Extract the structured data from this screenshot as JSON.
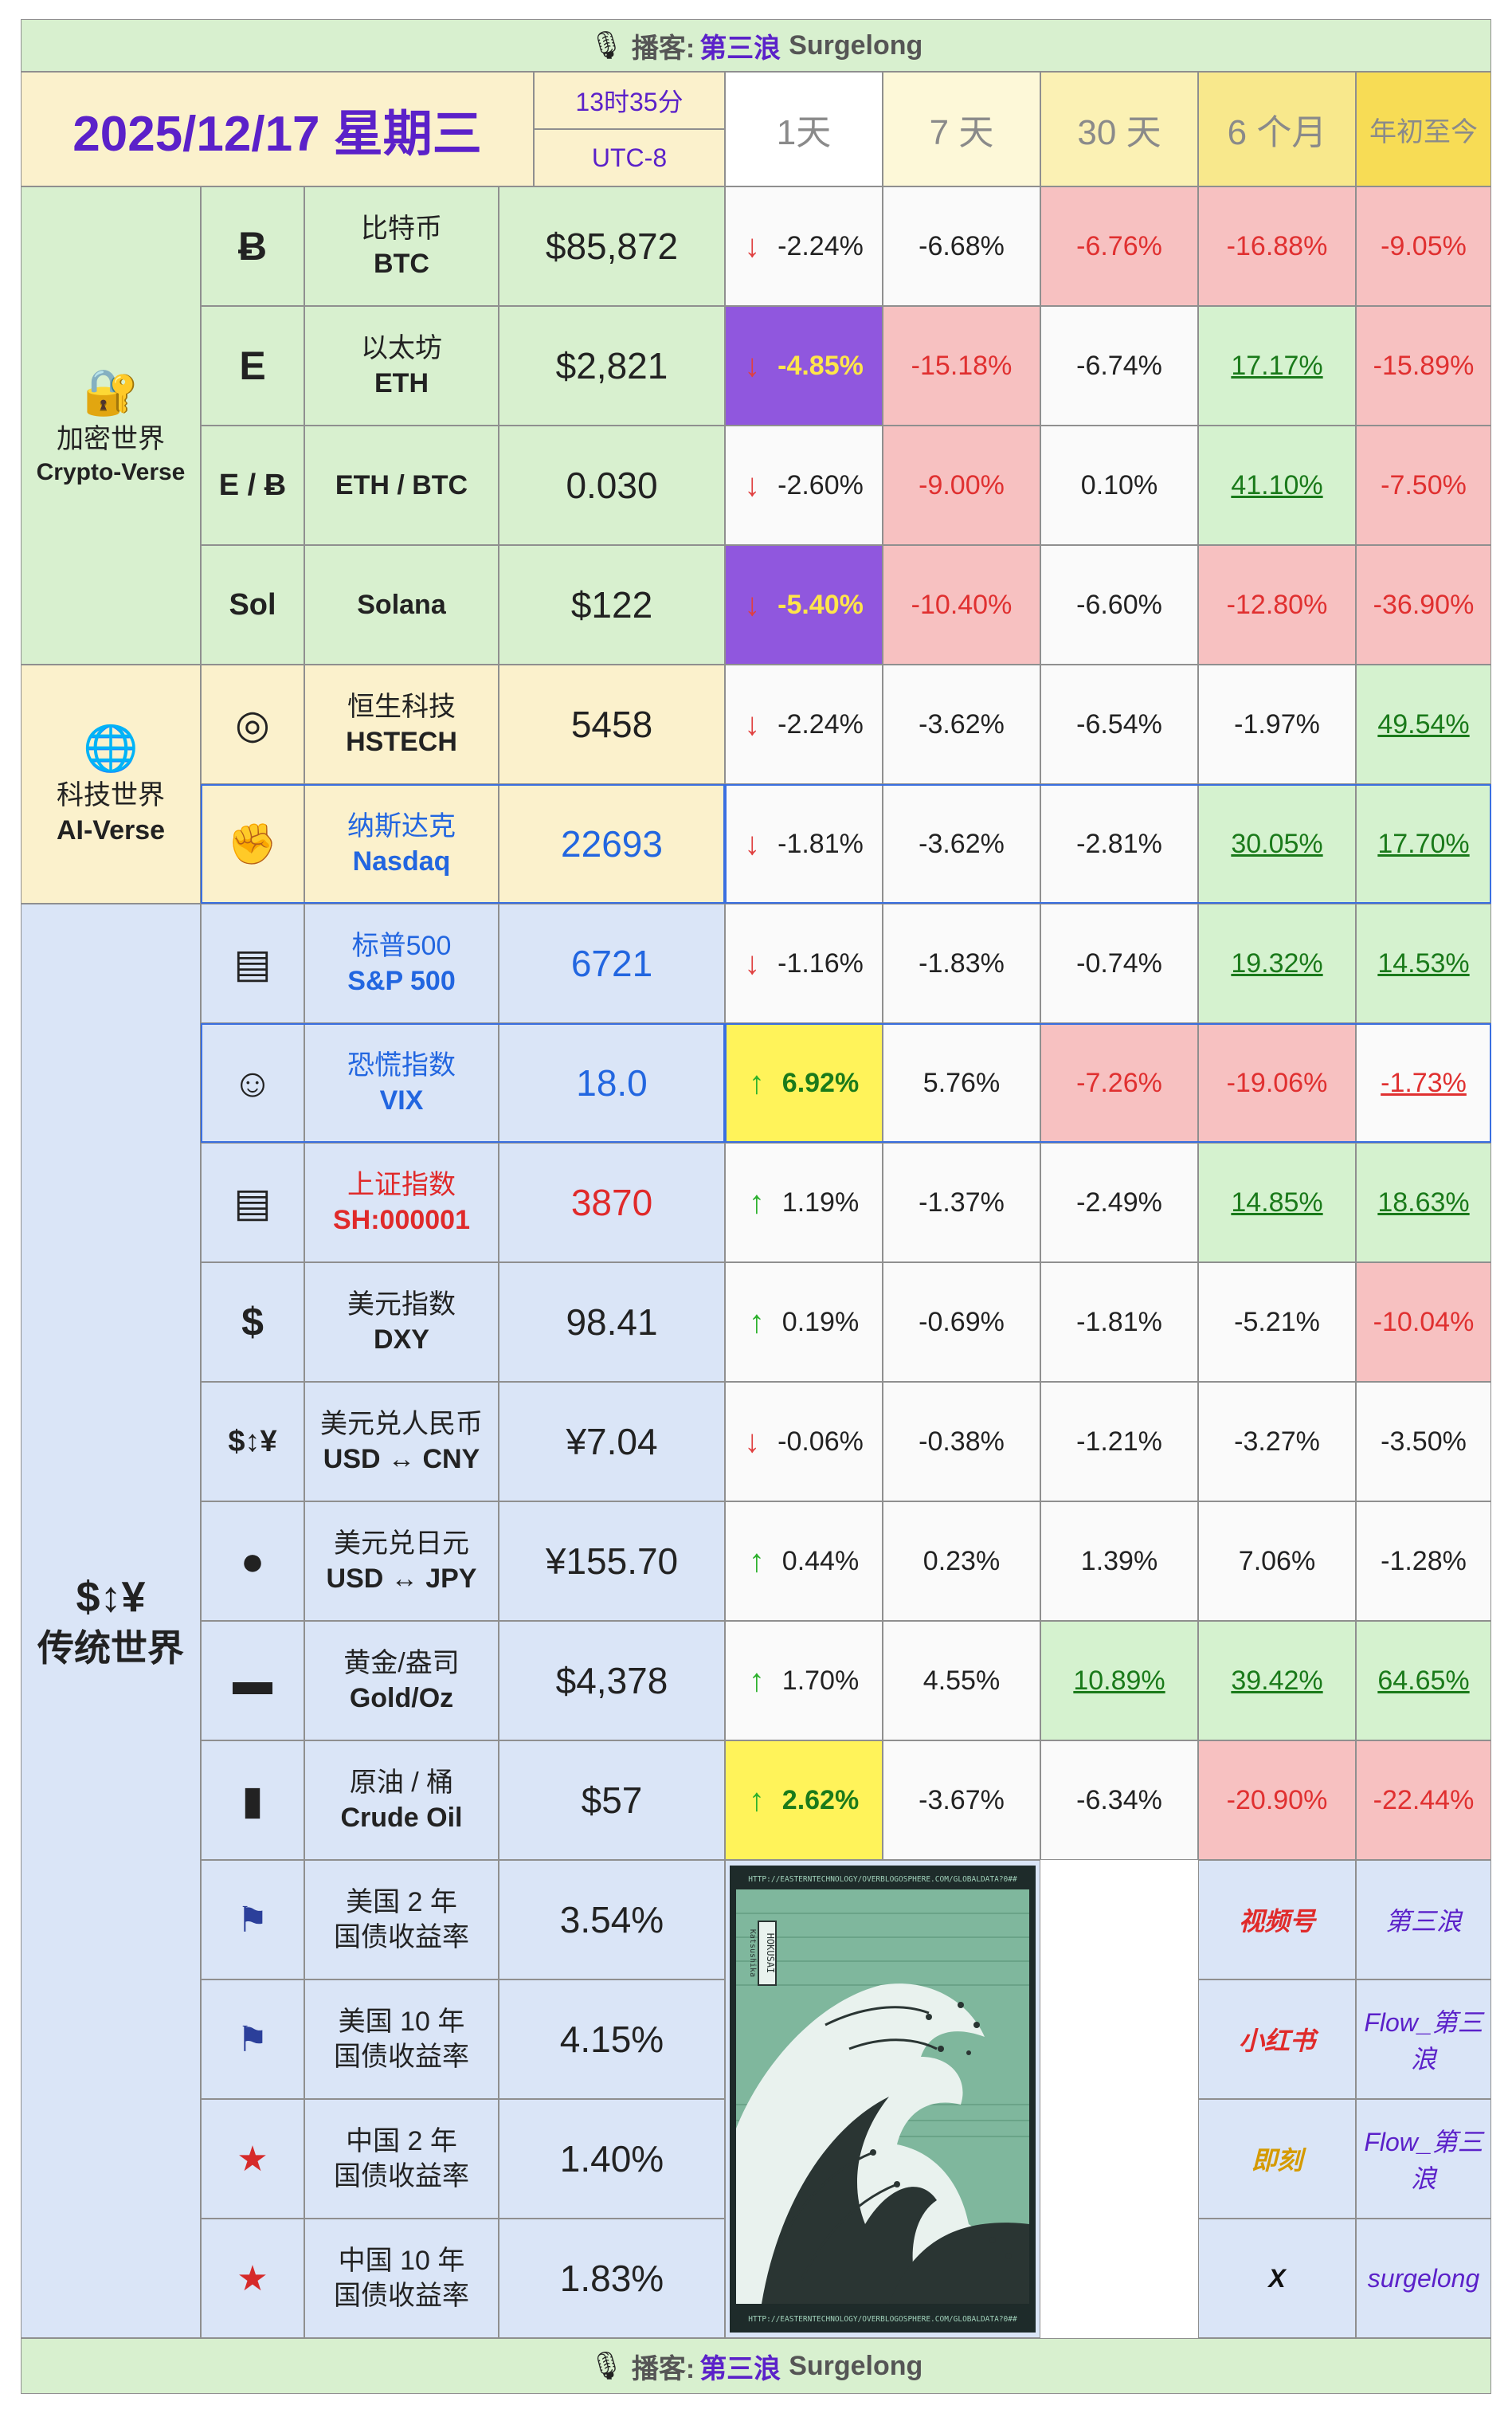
{
  "banner": {
    "icon": "microphone-icon",
    "label": "播客:",
    "name": "第三浪",
    "handle": "Surgelong"
  },
  "header": {
    "date": "2025/12/17 星期三",
    "time": "13时35分",
    "timezone": "UTC-8",
    "periods": [
      "1天",
      "7 天",
      "30 天",
      "6 个月",
      "年初至今"
    ]
  },
  "groups": [
    {
      "icon": "lock-icon",
      "name_cn": "加密世界",
      "name_en": "Crypto-Verse"
    },
    {
      "icon": "globe-icon",
      "name_cn": "科技世界",
      "name_en": "AI-Verse"
    },
    {
      "icon": "currency-exchange-icon",
      "icon_text": "$↕¥",
      "name_cn": "传统世界",
      "name_en": ""
    }
  ],
  "rows": [
    {
      "icon": "bitcoin-icon",
      "icon_text": "Ƀ",
      "cn": "比特币",
      "en": "BTC",
      "price": "$85,872",
      "dir": "down",
      "changes": [
        "-2.24%",
        "-6.68%",
        "-6.76%",
        "-16.88%",
        "-9.05%"
      ]
    },
    {
      "icon": "ethereum-icon",
      "icon_text": "E",
      "cn": "以太坊",
      "en": "ETH",
      "price": "$2,821",
      "dir": "down",
      "changes": [
        "-4.85%",
        "-15.18%",
        "-6.74%",
        "17.17%",
        "-15.89%"
      ]
    },
    {
      "icon": "eth-btc-icon",
      "icon_text": "E / Ƀ",
      "cn": "",
      "en": "ETH / BTC",
      "price": "0.030",
      "dir": "down",
      "changes": [
        "-2.60%",
        "-9.00%",
        "0.10%",
        "41.10%",
        "-7.50%"
      ]
    },
    {
      "icon": "solana-icon",
      "icon_text": "Sol",
      "cn": "",
      "en": "Solana",
      "price": "$122",
      "dir": "down",
      "changes": [
        "-5.40%",
        "-10.40%",
        "-6.60%",
        "-12.80%",
        "-36.90%"
      ]
    },
    {
      "icon": "disco-ball-icon",
      "icon_text": "◎",
      "cn": "恒生科技",
      "en": "HSTECH",
      "price": "5458",
      "dir": "down",
      "changes": [
        "-2.24%",
        "-3.62%",
        "-6.54%",
        "-1.97%",
        "49.54%"
      ]
    },
    {
      "icon": "flexed-arm-icon",
      "icon_text": "✊",
      "cn": "纳斯达克",
      "en": "Nasdaq",
      "price": "22693",
      "dir": "down",
      "changes": [
        "-1.81%",
        "-3.62%",
        "-2.81%",
        "30.05%",
        "17.70%"
      ]
    },
    {
      "icon": "ticket-icon",
      "icon_text": "▤",
      "cn": "标普500",
      "en": "S&P 500",
      "price": "6721",
      "dir": "down",
      "changes": [
        "-1.16%",
        "-1.83%",
        "-0.74%",
        "19.32%",
        "14.53%"
      ]
    },
    {
      "icon": "screaming-face-icon",
      "icon_text": "☺",
      "cn": "恐慌指数",
      "en": "VIX",
      "price": "18.0",
      "dir": "up",
      "changes": [
        "6.92%",
        "5.76%",
        "-7.26%",
        "-19.06%",
        "-1.73%"
      ]
    },
    {
      "icon": "ticket-icon",
      "icon_text": "▤",
      "cn": "上证指数",
      "en": "SH:000001",
      "price": "3870",
      "dir": "up",
      "changes": [
        "1.19%",
        "-1.37%",
        "-2.49%",
        "14.85%",
        "18.63%"
      ]
    },
    {
      "icon": "dollar-banknote-icon",
      "icon_text": "$",
      "cn": "美元指数",
      "en": "DXY",
      "price": "98.41",
      "dir": "up",
      "changes": [
        "0.19%",
        "-0.69%",
        "-1.81%",
        "-5.21%",
        "-10.04%"
      ]
    },
    {
      "icon": "currency-exchange-icon",
      "icon_text": "$↕¥",
      "cn": "美元兑人民币",
      "en": "USD ↔ CNY",
      "price": "¥7.04",
      "dir": "down",
      "changes": [
        "-0.06%",
        "-0.38%",
        "-1.21%",
        "-3.27%",
        "-3.50%"
      ]
    },
    {
      "icon": "japan-flag-icon",
      "icon_text": "●",
      "cn": "美元兑日元",
      "en": "USD ↔ JPY",
      "price": "¥155.70",
      "dir": "up",
      "changes": [
        "0.44%",
        "0.23%",
        "1.39%",
        "7.06%",
        "-1.28%"
      ]
    },
    {
      "icon": "gold-bar-icon",
      "icon_text": "▬",
      "cn": "黄金/盎司",
      "en": "Gold/Oz",
      "price": "$4,378",
      "dir": "up",
      "changes": [
        "1.70%",
        "4.55%",
        "10.89%",
        "39.42%",
        "64.65%"
      ]
    },
    {
      "icon": "oil-drum-icon",
      "icon_text": "▮",
      "cn": "原油 / 桶",
      "en": "Crude Oil",
      "price": "$57",
      "dir": "up",
      "changes": [
        "2.62%",
        "-3.67%",
        "-6.34%",
        "-20.90%",
        "-22.44%"
      ]
    }
  ],
  "bonds": [
    {
      "icon": "us-flag-icon",
      "line1": "美国 2 年",
      "line2": "国债收益率",
      "value": "3.54%"
    },
    {
      "icon": "us-flag-icon",
      "line1": "美国 10 年",
      "line2": "国债收益率",
      "value": "4.15%"
    },
    {
      "icon": "china-flag-icon",
      "line1": "中国 2 年",
      "line2": "国债收益率",
      "value": "1.40%"
    },
    {
      "icon": "china-flag-icon",
      "line1": "中国 10 年",
      "line2": "国债收益率",
      "value": "1.83%"
    }
  ],
  "artwork": {
    "caption_top": "HTTP://EASTERNTECHNOLOGY/OVERBLOGOSPHERE.COM/GLOBALDATA?0##",
    "caption_bottom": "HTTP://EASTERNTECHNOLOGY/OVERBLOGOSPHERE.COM/GLOBALDATA?0##",
    "stamp": "HOKUSAI",
    "side": "Katsushika"
  },
  "socials": [
    {
      "platform": "视频号",
      "handle": "第三浪",
      "color": "#e02a2a"
    },
    {
      "platform": "小红书",
      "handle": "Flow_第三浪",
      "color": "#e02a2a"
    },
    {
      "platform": "即刻",
      "handle": "Flow_第三浪",
      "color": "#d59a00"
    },
    {
      "platform": "X",
      "handle": "surgelong",
      "color": "#111111"
    }
  ],
  "colors": {
    "accent": "#5b21c9",
    "positive": "#1a7a1a",
    "negative": "#e03030",
    "up_arrow": "#2bb02b",
    "down_arrow": "#e04040"
  }
}
